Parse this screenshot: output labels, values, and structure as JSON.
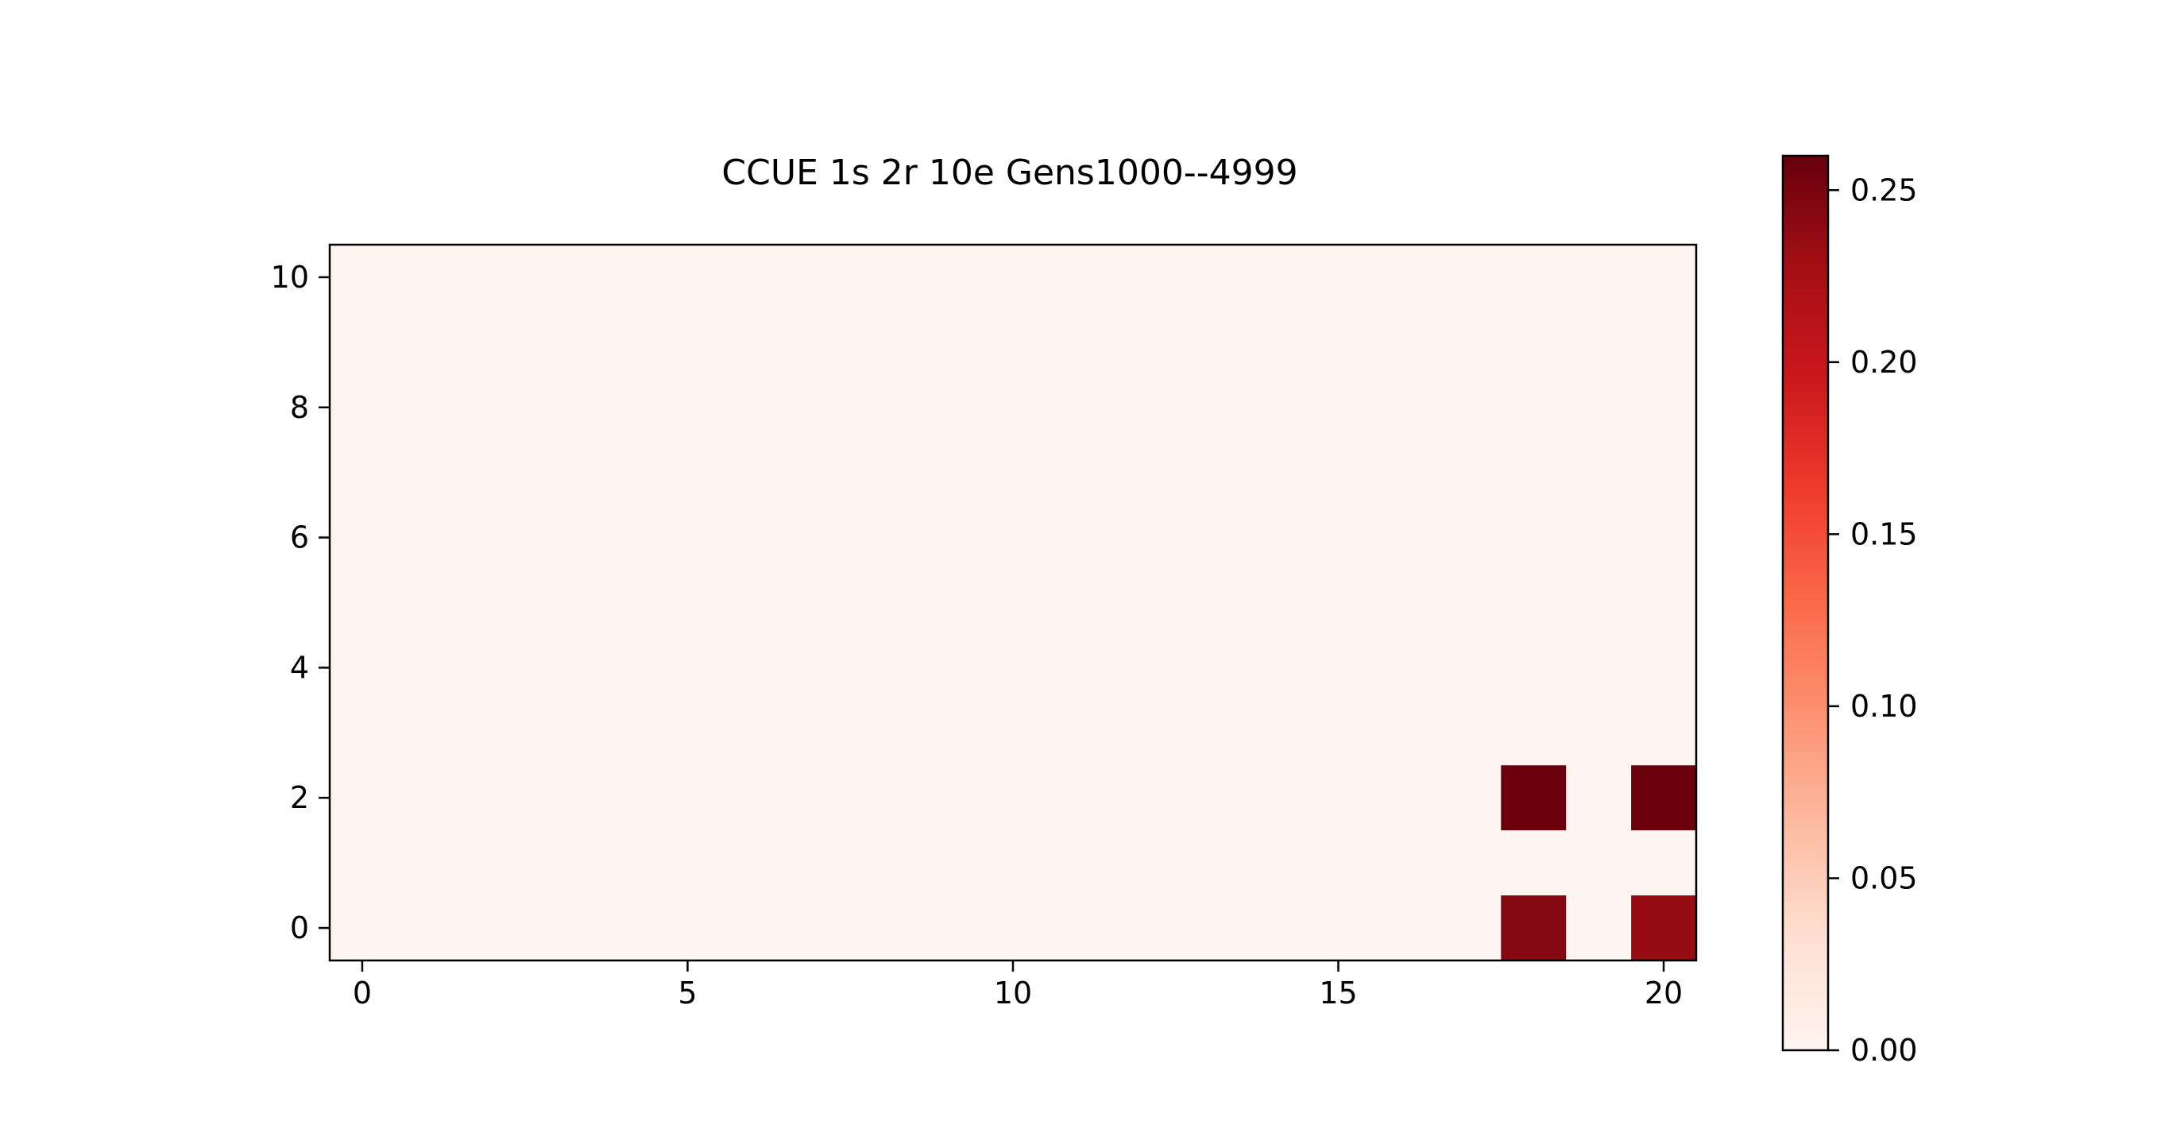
{
  "chart_data": {
    "type": "heatmap",
    "title": "CCUE 1s 2r 10e Gens1000--4999",
    "xlabel": "",
    "ylabel": "",
    "colormap": "Reds",
    "xlim": [
      -0.5,
      20.5
    ],
    "ylim": [
      -0.5,
      10.5
    ],
    "x_ticks": [
      0,
      5,
      10,
      15,
      20
    ],
    "x_tick_labels": [
      "0",
      "5",
      "10",
      "15",
      "20"
    ],
    "y_ticks": [
      0,
      2,
      4,
      6,
      8,
      10
    ],
    "y_tick_labels": [
      "0",
      "2",
      "4",
      "6",
      "8",
      "10"
    ],
    "grid": false,
    "background_value": 0.0,
    "cells": [
      {
        "x": 18,
        "y": 2,
        "value": 0.258
      },
      {
        "x": 20,
        "y": 2,
        "value": 0.258
      },
      {
        "x": 18,
        "y": 0,
        "value": 0.245
      },
      {
        "x": 20,
        "y": 0,
        "value": 0.235
      }
    ],
    "colorbar": {
      "min": 0.0,
      "max": 0.26,
      "ticks": [
        0.0,
        0.05,
        0.1,
        0.15,
        0.2,
        0.25
      ],
      "tick_labels": [
        "0.00",
        "0.05",
        "0.10",
        "0.15",
        "0.20",
        "0.25"
      ],
      "colors": [
        "#fff5f0",
        "#fee0d2",
        "#fcbba1",
        "#fc9272",
        "#fb6a4a",
        "#ef3b2c",
        "#cb181d",
        "#a50f15",
        "#67000d"
      ]
    }
  }
}
